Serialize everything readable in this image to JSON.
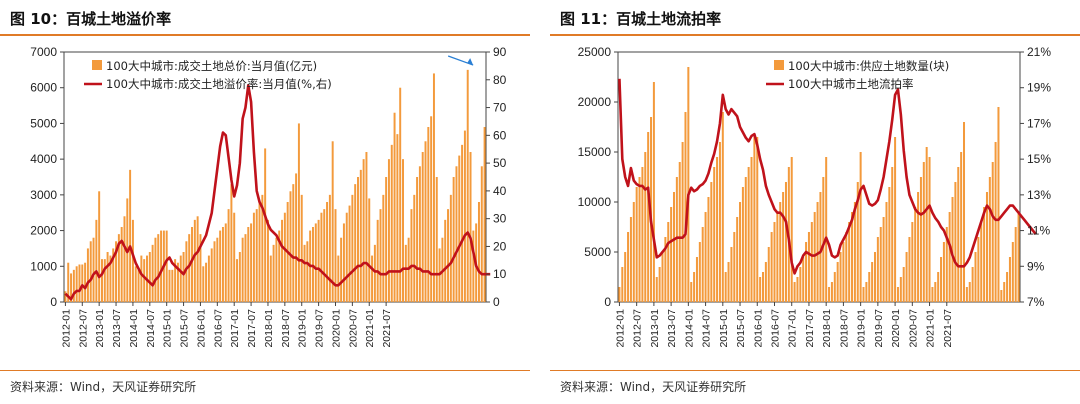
{
  "panels": [
    {
      "figure_title": "图 10：百城土地溢价率",
      "source": "资料来源：Wind，天风证券研究所"
    },
    {
      "figure_title": "图 11：百城土地流拍率",
      "source": "资料来源：Wind，天风证券研究所"
    }
  ],
  "chart_data": [
    {
      "type": "bar+line",
      "title": "",
      "x_tick_labels": [
        "2012-01",
        "2012-07",
        "2013-01",
        "2013-07",
        "2014-01",
        "2014-07",
        "2015-01",
        "2015-07",
        "2016-01",
        "2016-07",
        "2017-01",
        "2017-07",
        "2018-01",
        "2018-07",
        "2019-01",
        "2019-07",
        "2020-01",
        "2020-07",
        "2021-01",
        "2021-07"
      ],
      "x_start": "2012-01",
      "x_end": "2021-08",
      "y_left": {
        "range": [
          0,
          7000
        ],
        "ticks": [
          0,
          1000,
          2000,
          3000,
          4000,
          5000,
          6000,
          7000
        ]
      },
      "y_right": {
        "range": [
          0,
          90
        ],
        "ticks": [
          0,
          10,
          20,
          30,
          40,
          50,
          60,
          70,
          80,
          90
        ]
      },
      "legend_position": "top-right",
      "bar_color": "#f39a3c",
      "line_color": "#c0121b",
      "annotation_arrow_color": "#2a7fd4",
      "series": [
        {
          "name": "100大中城市:成交土地总价:当月值(亿元)",
          "kind": "bar",
          "axis": "left",
          "values": [
            300,
            1100,
            800,
            900,
            1000,
            1050,
            1050,
            1100,
            1500,
            1700,
            1800,
            2300,
            3100,
            1200,
            1200,
            1400,
            1300,
            1500,
            1700,
            1900,
            2100,
            2400,
            2900,
            3700,
            2300,
            1000,
            900,
            1300,
            1200,
            1300,
            1400,
            1600,
            1800,
            1900,
            2000,
            2000,
            2000,
            900,
            900,
            1200,
            1100,
            1300,
            1400,
            1700,
            1900,
            2100,
            2300,
            2400,
            1900,
            1000,
            1100,
            1300,
            1500,
            1700,
            1800,
            2000,
            2100,
            2200,
            2600,
            3300,
            2500,
            1200,
            1400,
            1800,
            1900,
            2100,
            2200,
            2500,
            2600,
            2800,
            3000,
            4300,
            2300,
            1300,
            1600,
            1800,
            2000,
            2300,
            2500,
            2800,
            3100,
            3300,
            3600,
            5000,
            3000,
            1600,
            1700,
            2000,
            2100,
            2200,
            2300,
            2500,
            2600,
            2800,
            3000,
            4500,
            2600,
            1300,
            1800,
            2200,
            2500,
            2700,
            3000,
            3300,
            3500,
            3700,
            4000,
            4200,
            2900,
            1300,
            1600,
            2300,
            2600,
            3000,
            3500,
            4000,
            4400,
            5300,
            4700,
            6000,
            4000,
            1600,
            1800,
            2600,
            3000,
            3500,
            3800,
            4200,
            4500,
            4900,
            5200,
            6400,
            3500,
            1500,
            1800,
            2300,
            2600,
            3000,
            3500,
            3800,
            4100,
            4400,
            4800,
            6500,
            4200,
            2000,
            2200,
            2800,
            3800,
            4900
          ],
          "peak_value": 6550
        },
        {
          "name": "100大中城市:成交土地溢价率:当月值(%,右)",
          "kind": "line",
          "axis": "right",
          "values": [
            3,
            2,
            1,
            3,
            4,
            4,
            6,
            5,
            7,
            8,
            10,
            11,
            9,
            10,
            12,
            13,
            14,
            16,
            18,
            21,
            22,
            20,
            18,
            20,
            17,
            14,
            12,
            10,
            9,
            8,
            7,
            6,
            8,
            9,
            11,
            13,
            15,
            16,
            14,
            13,
            12,
            11,
            10,
            12,
            13,
            15,
            17,
            18,
            20,
            22,
            24,
            28,
            32,
            40,
            48,
            56,
            61,
            60,
            52,
            44,
            38,
            42,
            50,
            66,
            70,
            78,
            72,
            54,
            40,
            36,
            34,
            31,
            28,
            26,
            25,
            24,
            22,
            20,
            19,
            18,
            17,
            16,
            16,
            15,
            15,
            14,
            14,
            13,
            13,
            12,
            12,
            11,
            10,
            9,
            8,
            7,
            6,
            6,
            7,
            8,
            9,
            10,
            11,
            12,
            13,
            13,
            14,
            14,
            13,
            12,
            11,
            11,
            10,
            10,
            10,
            11,
            11,
            11,
            11,
            11,
            12,
            12,
            12,
            13,
            13,
            12,
            12,
            11,
            11,
            11,
            10,
            10,
            10,
            10,
            11,
            12,
            13,
            14,
            16,
            18,
            20,
            22,
            24,
            25,
            23,
            18,
            13,
            11,
            10,
            10,
            10,
            10
          ]
        }
      ]
    },
    {
      "type": "bar+line",
      "title": "",
      "x_tick_labels": [
        "2012-01",
        "2012-07",
        "2013-01",
        "2013-07",
        "2014-01",
        "2014-07",
        "2015-01",
        "2015-07",
        "2016-01",
        "2016-07",
        "2017-01",
        "2017-07",
        "2018-01",
        "2018-07",
        "2019-01",
        "2019-07",
        "2020-01",
        "2020-07",
        "2021-01",
        "2021-07"
      ],
      "x_start": "2012-01",
      "x_end": "2021-08",
      "y_left": {
        "range": [
          0,
          25000
        ],
        "ticks": [
          0,
          5000,
          10000,
          15000,
          20000,
          25000
        ]
      },
      "y_right": {
        "range": [
          7,
          21
        ],
        "ticks": [
          "7%",
          "9%",
          "11%",
          "13%",
          "15%",
          "17%",
          "19%",
          "21%"
        ],
        "tick_values": [
          7,
          9,
          11,
          13,
          15,
          17,
          19,
          21
        ]
      },
      "legend_position": "top-right",
      "bar_color": "#f39a3c",
      "line_color": "#c0121b",
      "series": [
        {
          "name": "100大中城市:供应土地数量(块)",
          "kind": "bar",
          "axis": "left",
          "values": [
            1500,
            3500,
            5000,
            7000,
            8500,
            10000,
            11500,
            12500,
            13500,
            15000,
            17000,
            18500,
            22000,
            2500,
            3500,
            5000,
            6500,
            8000,
            9500,
            11000,
            12500,
            14000,
            16000,
            19000,
            23500,
            2000,
            3000,
            4500,
            6000,
            7500,
            9000,
            10500,
            12000,
            13500,
            14500,
            16000,
            19000,
            3000,
            4000,
            5500,
            7000,
            8500,
            10000,
            11500,
            12500,
            13500,
            14500,
            16500,
            16500,
            2500,
            3000,
            4000,
            5500,
            7000,
            8000,
            9000,
            10000,
            11000,
            12000,
            13500,
            14500,
            2000,
            2500,
            3500,
            4500,
            6000,
            7000,
            8000,
            9000,
            10000,
            11000,
            12500,
            14500,
            1500,
            2000,
            3000,
            4000,
            5000,
            6000,
            7000,
            8000,
            9000,
            10000,
            12000,
            15000,
            1500,
            2000,
            3000,
            4000,
            5000,
            6500,
            7500,
            8500,
            10000,
            11500,
            13500,
            16500,
            1500,
            2500,
            3500,
            5000,
            6500,
            8000,
            9500,
            11000,
            12500,
            14000,
            15500,
            14500,
            1500,
            2000,
            3000,
            4500,
            6000,
            7500,
            9000,
            10500,
            12000,
            13500,
            15000,
            18000,
            1500,
            2000,
            3500,
            5000,
            6500,
            8000,
            9500,
            11000,
            12500,
            14000,
            16000,
            19500,
            1200,
            2000,
            3000,
            4500,
            6000,
            7500,
            9000
          ],
          "peak_value": 23500
        },
        {
          "name": "100大中城市土地流拍率",
          "kind": "line",
          "axis": "right",
          "values": [
            19.5,
            15,
            14,
            13.5,
            14.5,
            13.8,
            13.6,
            13.5,
            13.5,
            13.3,
            13.4,
            11.5,
            10.5,
            9.5,
            9.6,
            9.8,
            10,
            10.3,
            10.4,
            10.5,
            10.6,
            10.6,
            10.6,
            10.8,
            13,
            13.4,
            13.2,
            13.3,
            13.5,
            13.6,
            13.8,
            14.2,
            14.8,
            15.3,
            16,
            17,
            18.6,
            17.8,
            17.5,
            17.8,
            17.6,
            17.4,
            16.8,
            16.5,
            16.2,
            16,
            16.3,
            16.4,
            15.8,
            15,
            14.4,
            13.5,
            13,
            12.6,
            12.2,
            12,
            12,
            11.8,
            11.5,
            10.5,
            9.2,
            8.6,
            9,
            9.2,
            9.6,
            9.8,
            9.7,
            9.6,
            9.6,
            9.7,
            9.8,
            10.2,
            10.6,
            10.2,
            9.6,
            9.5,
            9.6,
            10.2,
            10.5,
            10.8,
            11.2,
            11.6,
            12.2,
            12.7,
            13.3,
            13.5,
            13,
            12.5,
            12.4,
            12.5,
            12.7,
            13.3,
            14,
            15,
            16,
            17.2,
            18.6,
            18.9,
            17.5,
            15.5,
            14,
            13,
            12.6,
            12.2,
            12,
            11.9,
            12,
            12.2,
            12.4,
            12,
            11.7,
            11.5,
            11.2,
            11,
            10.6,
            10.2,
            9.6,
            9.2,
            9,
            9,
            9,
            9.2,
            9.5,
            10,
            10.5,
            11,
            11.5,
            12,
            12.4,
            12.2,
            11.8,
            11.6,
            11.6,
            11.8,
            12,
            12.2,
            12.4,
            12.4,
            12.2,
            12,
            11.8,
            11.6,
            11.4,
            11.2,
            11,
            10.8
          ]
        }
      ]
    }
  ]
}
